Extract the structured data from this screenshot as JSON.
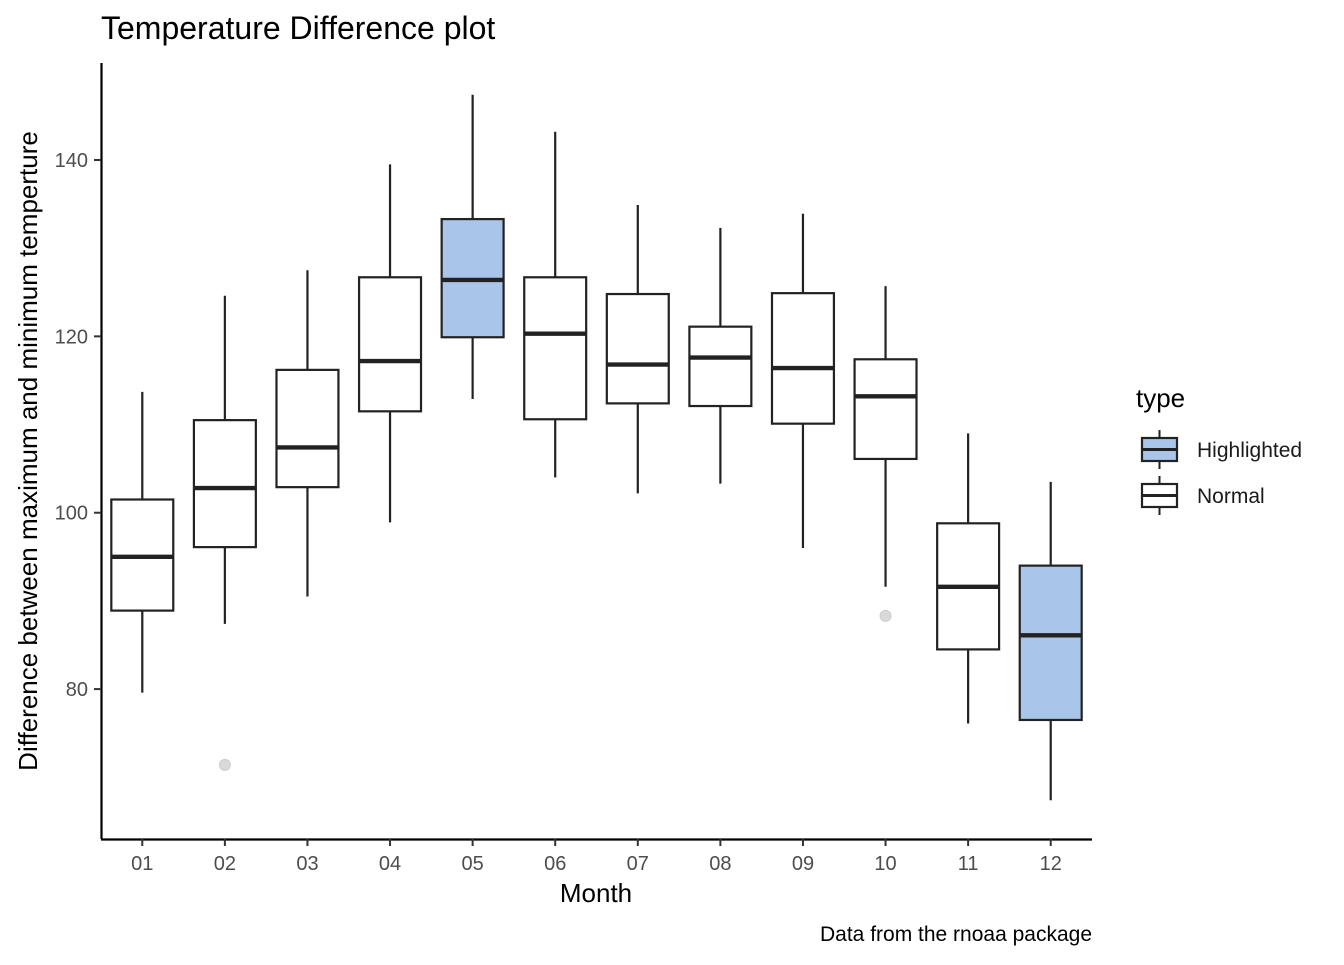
{
  "chart_data": {
    "type": "boxplot",
    "title": "Temperature Difference plot",
    "xlabel": "Month",
    "ylabel": "Difference between maximum and minimum temperture",
    "caption": "Data from the rnoaa package",
    "ylim": [
      63,
      151
    ],
    "yticks": [
      80,
      100,
      120,
      140
    ],
    "grid": false,
    "legend": {
      "title": "type",
      "position": "right",
      "entries": [
        {
          "label": "Highlighted",
          "color": "#a9c6ea"
        },
        {
          "label": "Normal",
          "color": "#ffffff"
        }
      ]
    },
    "categories": [
      "01",
      "02",
      "03",
      "04",
      "05",
      "06",
      "07",
      "08",
      "09",
      "10",
      "11",
      "12"
    ],
    "boxes": [
      {
        "month": "01",
        "type": "Normal",
        "whisker_low": 79.6,
        "q1": 88.9,
        "median": 95.0,
        "q3": 101.5,
        "whisker_high": 113.7,
        "outliers": []
      },
      {
        "month": "02",
        "type": "Normal",
        "whisker_low": 87.4,
        "q1": 96.1,
        "median": 102.8,
        "q3": 110.5,
        "whisker_high": 124.6,
        "outliers": [
          71.4
        ]
      },
      {
        "month": "03",
        "type": "Normal",
        "whisker_low": 90.5,
        "q1": 102.9,
        "median": 107.4,
        "q3": 116.2,
        "whisker_high": 127.5,
        "outliers": []
      },
      {
        "month": "04",
        "type": "Normal",
        "whisker_low": 98.9,
        "q1": 111.5,
        "median": 117.2,
        "q3": 126.7,
        "whisker_high": 139.5,
        "outliers": []
      },
      {
        "month": "05",
        "type": "Highlighted",
        "whisker_low": 112.9,
        "q1": 119.9,
        "median": 126.4,
        "q3": 133.3,
        "whisker_high": 147.4,
        "outliers": []
      },
      {
        "month": "06",
        "type": "Normal",
        "whisker_low": 104.0,
        "q1": 110.6,
        "median": 120.3,
        "q3": 126.7,
        "whisker_high": 143.2,
        "outliers": []
      },
      {
        "month": "07",
        "type": "Normal",
        "whisker_low": 102.2,
        "q1": 112.4,
        "median": 116.8,
        "q3": 124.8,
        "whisker_high": 134.9,
        "outliers": []
      },
      {
        "month": "08",
        "type": "Normal",
        "whisker_low": 103.3,
        "q1": 112.1,
        "median": 117.6,
        "q3": 121.1,
        "whisker_high": 132.3,
        "outliers": []
      },
      {
        "month": "09",
        "type": "Normal",
        "whisker_low": 96.0,
        "q1": 110.1,
        "median": 116.4,
        "q3": 124.9,
        "whisker_high": 133.9,
        "outliers": []
      },
      {
        "month": "10",
        "type": "Normal",
        "whisker_low": 91.6,
        "q1": 106.1,
        "median": 113.2,
        "q3": 117.4,
        "whisker_high": 125.7,
        "outliers": [
          88.3
        ]
      },
      {
        "month": "11",
        "type": "Normal",
        "whisker_low": 76.1,
        "q1": 84.5,
        "median": 91.6,
        "q3": 98.8,
        "whisker_high": 109.0,
        "outliers": []
      },
      {
        "month": "12",
        "type": "Highlighted",
        "whisker_low": 67.4,
        "q1": 76.5,
        "median": 86.1,
        "q3": 94.0,
        "whisker_high": 103.5,
        "outliers": []
      }
    ]
  }
}
